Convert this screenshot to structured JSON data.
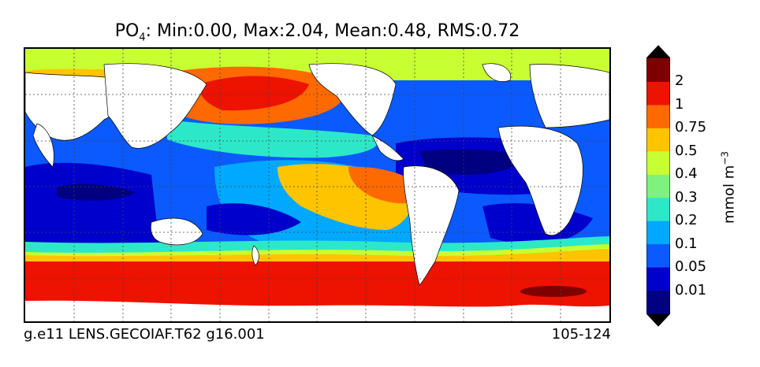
{
  "title": {
    "variable": "PO",
    "subscript": "4",
    "stats": ": Min:0.00, Max:2.04, Mean:0.48, RMS:0.72"
  },
  "footer": {
    "case_name": "g.e11 LENS.GECOIAF.T62 g16.001",
    "years": "105-124"
  },
  "colorbar": {
    "label_main": "mmol m",
    "label_exp": "−3",
    "tick_labels": [
      "2",
      "1",
      "0.75",
      "0.5",
      "0.4",
      "0.3",
      "0.2",
      "0.1",
      "0.05",
      "0.01"
    ],
    "colors": [
      "#000080",
      "#0000cd",
      "#0a5aff",
      "#00a9ff",
      "#2ce8c8",
      "#7df27d",
      "#c8ff32",
      "#ffc400",
      "#ff6a00",
      "#ee1200",
      "#7f0000"
    ]
  }
}
